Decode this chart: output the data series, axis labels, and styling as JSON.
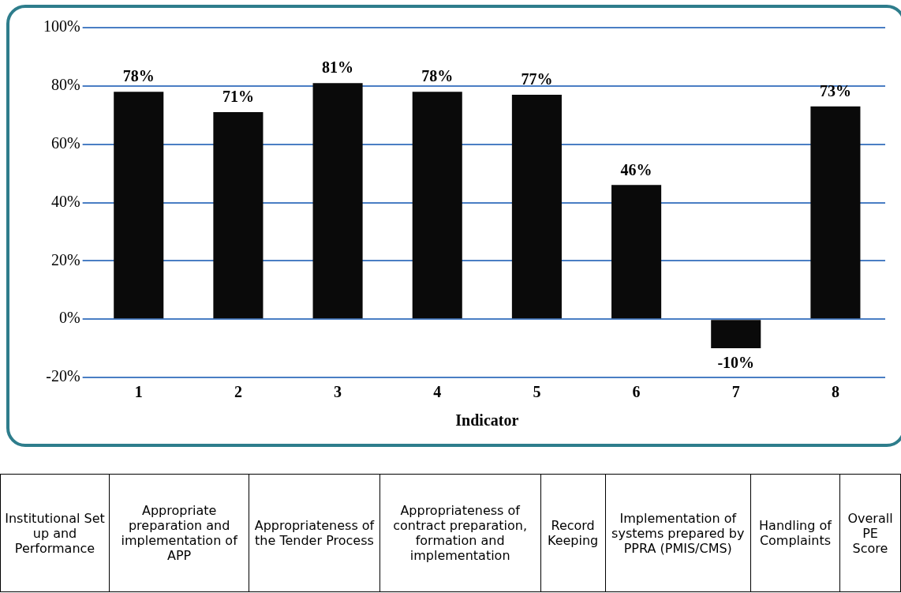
{
  "chart_data": {
    "type": "bar",
    "xlabel": "Indicator",
    "categories": [
      "1",
      "2",
      "3",
      "4",
      "5",
      "6",
      "7",
      "8"
    ],
    "values": [
      78,
      71,
      81,
      78,
      77,
      46,
      -10,
      73
    ],
    "value_labels": [
      "78%",
      "71%",
      "81%",
      "78%",
      "77%",
      "46%",
      "-10%",
      "73%"
    ],
    "color": "#0a0a0a",
    "ylim": [
      -20,
      100
    ],
    "yticks": [
      {
        "value": -20,
        "label": "-20%"
      },
      {
        "value": 0,
        "label": "0%"
      },
      {
        "value": 20,
        "label": "20%"
      },
      {
        "value": 40,
        "label": "40%"
      },
      {
        "value": 60,
        "label": "60%"
      },
      {
        "value": 80,
        "label": "80%"
      },
      {
        "value": 100,
        "label": "100%"
      }
    ],
    "grid": "y",
    "legend": false,
    "annotations": [
      "Institutional Set up and Performance",
      "Appropriate preparation and implementation of APP",
      "Appropriateness of the Tender Process",
      "Appropriateness of contract preparation, formation and implementation",
      "Record Keeping",
      "Implementation of systems prepared by PPRA (PMIS/CMS)",
      "Handling of Complaints",
      "Overall PE Score"
    ]
  }
}
